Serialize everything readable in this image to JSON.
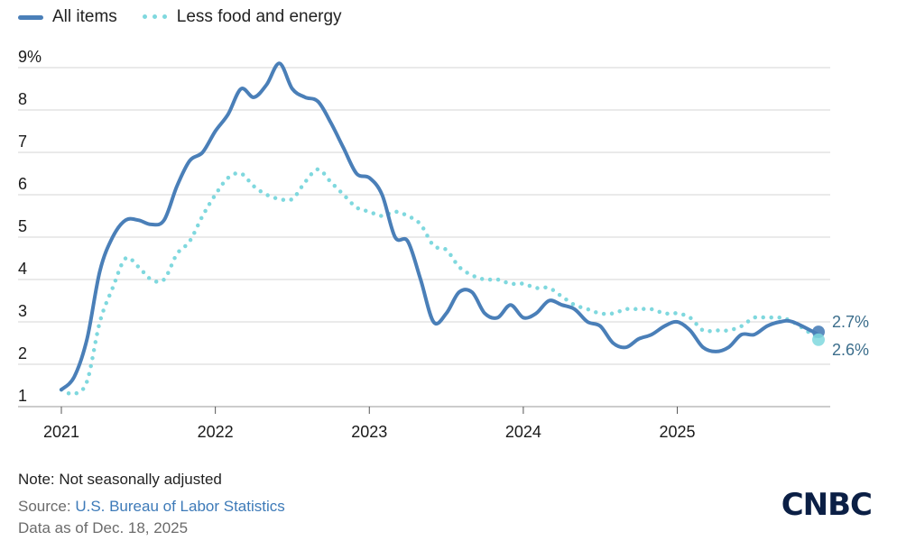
{
  "legend": {
    "all_items": "All items",
    "core": "Less food and energy"
  },
  "colors": {
    "all_items": "#4a7fb8",
    "core": "#7fd8de",
    "grid": "#d5d5d5",
    "axis_text": "#1a1a1a",
    "end_label": "#3c6e8c"
  },
  "chart_data": {
    "type": "line",
    "y_tick_labels": [
      "1",
      "2",
      "3",
      "4",
      "5",
      "6",
      "7",
      "8",
      "9%"
    ],
    "ylim": [
      1,
      9
    ],
    "x_tick_labels": [
      "2021",
      "2022",
      "2023",
      "2024",
      "2025"
    ],
    "xlim": [
      2021.0,
      2025.917
    ],
    "grid": true,
    "legend_position": "top-left",
    "series": [
      {
        "name": "All items",
        "style": "solid",
        "end_label": "2.7%",
        "points": [
          [
            2021.0,
            1.4
          ],
          [
            2021.083,
            1.7
          ],
          [
            2021.167,
            2.6
          ],
          [
            2021.25,
            4.2
          ],
          [
            2021.333,
            5.0
          ],
          [
            2021.417,
            5.4
          ],
          [
            2021.5,
            5.4
          ],
          [
            2021.583,
            5.3
          ],
          [
            2021.667,
            5.4
          ],
          [
            2021.75,
            6.2
          ],
          [
            2021.833,
            6.8
          ],
          [
            2021.917,
            7.0
          ],
          [
            2022.0,
            7.5
          ],
          [
            2022.083,
            7.9
          ],
          [
            2022.167,
            8.5
          ],
          [
            2022.25,
            8.3
          ],
          [
            2022.333,
            8.6
          ],
          [
            2022.417,
            9.1
          ],
          [
            2022.5,
            8.5
          ],
          [
            2022.583,
            8.3
          ],
          [
            2022.667,
            8.2
          ],
          [
            2022.75,
            7.7
          ],
          [
            2022.833,
            7.1
          ],
          [
            2022.917,
            6.5
          ],
          [
            2023.0,
            6.4
          ],
          [
            2023.083,
            6.0
          ],
          [
            2023.167,
            5.0
          ],
          [
            2023.25,
            4.9
          ],
          [
            2023.333,
            4.0
          ],
          [
            2023.417,
            3.0
          ],
          [
            2023.5,
            3.2
          ],
          [
            2023.583,
            3.7
          ],
          [
            2023.667,
            3.7
          ],
          [
            2023.75,
            3.2
          ],
          [
            2023.833,
            3.1
          ],
          [
            2023.917,
            3.4
          ],
          [
            2024.0,
            3.1
          ],
          [
            2024.083,
            3.2
          ],
          [
            2024.167,
            3.5
          ],
          [
            2024.25,
            3.4
          ],
          [
            2024.333,
            3.3
          ],
          [
            2024.417,
            3.0
          ],
          [
            2024.5,
            2.9
          ],
          [
            2024.583,
            2.5
          ],
          [
            2024.667,
            2.4
          ],
          [
            2024.75,
            2.6
          ],
          [
            2024.833,
            2.7
          ],
          [
            2024.917,
            2.9
          ],
          [
            2025.0,
            3.0
          ],
          [
            2025.083,
            2.8
          ],
          [
            2025.167,
            2.4
          ],
          [
            2025.25,
            2.3
          ],
          [
            2025.333,
            2.4
          ],
          [
            2025.417,
            2.7
          ],
          [
            2025.5,
            2.7
          ],
          [
            2025.583,
            2.9
          ],
          [
            2025.667,
            3.0
          ],
          [
            2025.75,
            3.0
          ],
          [
            2025.917,
            2.7
          ]
        ]
      },
      {
        "name": "Less food and energy",
        "style": "dotted",
        "end_label": "2.6%",
        "points": [
          [
            2021.0,
            1.4
          ],
          [
            2021.083,
            1.3
          ],
          [
            2021.167,
            1.6
          ],
          [
            2021.25,
            3.0
          ],
          [
            2021.333,
            3.8
          ],
          [
            2021.417,
            4.5
          ],
          [
            2021.5,
            4.3
          ],
          [
            2021.583,
            4.0
          ],
          [
            2021.667,
            4.0
          ],
          [
            2021.75,
            4.6
          ],
          [
            2021.833,
            4.9
          ],
          [
            2021.917,
            5.5
          ],
          [
            2022.0,
            6.0
          ],
          [
            2022.083,
            6.4
          ],
          [
            2022.167,
            6.5
          ],
          [
            2022.25,
            6.2
          ],
          [
            2022.333,
            6.0
          ],
          [
            2022.417,
            5.9
          ],
          [
            2022.5,
            5.9
          ],
          [
            2022.583,
            6.3
          ],
          [
            2022.667,
            6.6
          ],
          [
            2022.75,
            6.3
          ],
          [
            2022.833,
            6.0
          ],
          [
            2022.917,
            5.7
          ],
          [
            2023.0,
            5.6
          ],
          [
            2023.083,
            5.5
          ],
          [
            2023.167,
            5.6
          ],
          [
            2023.25,
            5.5
          ],
          [
            2023.333,
            5.3
          ],
          [
            2023.417,
            4.8
          ],
          [
            2023.5,
            4.7
          ],
          [
            2023.583,
            4.3
          ],
          [
            2023.667,
            4.1
          ],
          [
            2023.75,
            4.0
          ],
          [
            2023.833,
            4.0
          ],
          [
            2023.917,
            3.9
          ],
          [
            2024.0,
            3.9
          ],
          [
            2024.083,
            3.8
          ],
          [
            2024.167,
            3.8
          ],
          [
            2024.25,
            3.6
          ],
          [
            2024.333,
            3.4
          ],
          [
            2024.417,
            3.3
          ],
          [
            2024.5,
            3.2
          ],
          [
            2024.583,
            3.2
          ],
          [
            2024.667,
            3.3
          ],
          [
            2024.75,
            3.3
          ],
          [
            2024.833,
            3.3
          ],
          [
            2024.917,
            3.2
          ],
          [
            2025.0,
            3.2
          ],
          [
            2025.083,
            3.1
          ],
          [
            2025.167,
            2.8
          ],
          [
            2025.25,
            2.8
          ],
          [
            2025.333,
            2.8
          ],
          [
            2025.417,
            2.9
          ],
          [
            2025.5,
            3.1
          ],
          [
            2025.583,
            3.1
          ],
          [
            2025.667,
            3.1
          ],
          [
            2025.75,
            3.0
          ],
          [
            2025.917,
            2.6
          ]
        ]
      }
    ]
  },
  "footer": {
    "note": "Note: Not seasonally adjusted",
    "source_prefix": "Source: ",
    "source_link": "U.S. Bureau of Labor Statistics",
    "as_of": "Data as of Dec. 18, 2025"
  },
  "logo": "CNBC"
}
